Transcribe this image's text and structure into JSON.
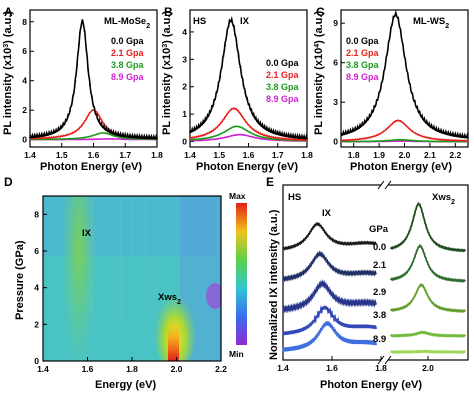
{
  "chart_data": [
    {
      "panel": "A",
      "type": "line",
      "tag": "ML-MoSe",
      "tag_sub": "2",
      "ylabel": "PL intensity (x10",
      "ylabel_sup": "3",
      "ylabel_tail": ") (a.u.)",
      "xlabel": "Photon Energy (eV)",
      "xlim": [
        1.4,
        1.8
      ],
      "ylim": [
        -0.5,
        8.8
      ],
      "xticks": [
        "1.4",
        "1.5",
        "1.6",
        "1.7",
        "1.8"
      ],
      "yticks": [
        "0",
        "2",
        "4",
        "6",
        "8"
      ],
      "series": [
        {
          "name": "0.0 Gpa",
          "color": "#000000",
          "center": 1.565,
          "width": 0.022,
          "peak": 8.0,
          "markers": true
        },
        {
          "name": "2.1 Gpa",
          "color": "#e8201e",
          "center": 1.6,
          "width": 0.035,
          "peak": 2.0
        },
        {
          "name": "3.8 Gpa",
          "color": "#1a9c1a",
          "center": 1.63,
          "width": 0.04,
          "peak": 0.45
        },
        {
          "name": "8.9 Gpa",
          "color": "#d01fd0",
          "center": 1.65,
          "width": 0.05,
          "peak": 0.05
        }
      ]
    },
    {
      "panel": "B",
      "type": "line",
      "tag": "HS",
      "tag2": "IX",
      "ylabel": "PL intensity (x10",
      "ylabel_sup": "3",
      "ylabel_tail": ") (a.u.)",
      "xlabel": "Photon Energy (eV)",
      "xlim": [
        1.4,
        1.8
      ],
      "ylim": [
        -0.2,
        4.8
      ],
      "xticks": [
        "1.4",
        "1.5",
        "1.6",
        "1.7",
        "1.8"
      ],
      "yticks": [
        "0",
        "1",
        "2",
        "3",
        "4"
      ],
      "series": [
        {
          "name": "0.0 Gpa",
          "color": "#000000",
          "center": 1.54,
          "width": 0.04,
          "peak": 4.4,
          "markers": true
        },
        {
          "name": "2.1 Gpa",
          "color": "#e8201e",
          "center": 1.55,
          "width": 0.05,
          "peak": 1.2
        },
        {
          "name": "3.8 Gpa",
          "color": "#1a9c1a",
          "center": 1.56,
          "width": 0.055,
          "peak": 0.55
        },
        {
          "name": "8.9 Gpa",
          "color": "#d01fd0",
          "center": 1.57,
          "width": 0.06,
          "peak": 0.25
        }
      ]
    },
    {
      "panel": "C",
      "type": "line",
      "tag": "ML-WS",
      "tag_sub": "2",
      "ylabel": "PL intensity (x10",
      "ylabel_sup": "4",
      "ylabel_tail": ") (a.u.)",
      "xlabel": "Photon Energy (eV)",
      "xlim": [
        1.75,
        2.25
      ],
      "ylim": [
        -0.4,
        10
      ],
      "xticks": [
        "1.8",
        "1.9",
        "2.0",
        "2.1",
        "2.2"
      ],
      "yticks": [
        "0",
        "3",
        "6",
        "9"
      ],
      "series": [
        {
          "name": "0.0 Gpa",
          "color": "#000000",
          "center": 1.965,
          "width": 0.05,
          "peak": 9.6
        },
        {
          "name": "2.1 Gpa",
          "color": "#e8201e",
          "center": 1.975,
          "width": 0.055,
          "peak": 1.6
        },
        {
          "name": "3.8 Gpa",
          "color": "#1a9c1a",
          "center": 1.985,
          "width": 0.06,
          "peak": 0.15
        },
        {
          "name": "8.9 Gpa",
          "color": "#d01fd0",
          "center": 1.99,
          "width": 0.06,
          "peak": 0.05
        }
      ]
    },
    {
      "panel": "D",
      "type": "heatmap",
      "xlabel": "Energy (eV)",
      "ylabel": "Pressure (GPa)",
      "xlim": [
        1.4,
        2.2
      ],
      "ylim": [
        0,
        9
      ],
      "xticks": [
        "1.4",
        "1.6",
        "1.8",
        "2.0",
        "2.2"
      ],
      "yticks": [
        "0",
        "2",
        "4",
        "6",
        "8"
      ],
      "annotations": [
        "IX",
        "Xws",
        "2"
      ],
      "colorbar": {
        "max_label": "Max",
        "min_label": "Min"
      }
    },
    {
      "panel": "E",
      "type": "line",
      "tag": "HS",
      "tag_ix": "IX",
      "tag_ws": "Xws",
      "tag_ws_sub": "2",
      "unit_label": "GPa",
      "ylabel": "Normalized IX intensity (a.u.)",
      "xlabel": "Photon Energy (eV)",
      "xticks": [
        "1.4",
        "1.6",
        "1.8",
        "2.0"
      ],
      "series": [
        {
          "name": "0.0",
          "color": "#1a1a1a",
          "ws_color": "#1e4d1e",
          "ix_center": 1.54,
          "ws_center": 1.965,
          "ws_peak": 1.6
        },
        {
          "name": "2.1",
          "color": "#1e2f66",
          "ws_color": "#2d6b2d",
          "ix_center": 1.55,
          "ws_center": 1.97,
          "ws_peak": 1.2
        },
        {
          "name": "2.9",
          "color": "#28358c",
          "ws_color": "#5f9e2a",
          "ix_center": 1.56,
          "ws_center": 1.975,
          "ws_peak": 0.9
        },
        {
          "name": "3.8",
          "color": "#3349b8",
          "ws_color": "#6fb83a",
          "ix_center": 1.57,
          "ws_center": 1.98,
          "ws_peak": 0.12
        },
        {
          "name": "8.9",
          "color": "#3f6ee0",
          "ws_color": "#9fd55a",
          "ix_center": 1.58,
          "ws_center": 1.985,
          "ws_peak": 0.02
        }
      ]
    }
  ]
}
